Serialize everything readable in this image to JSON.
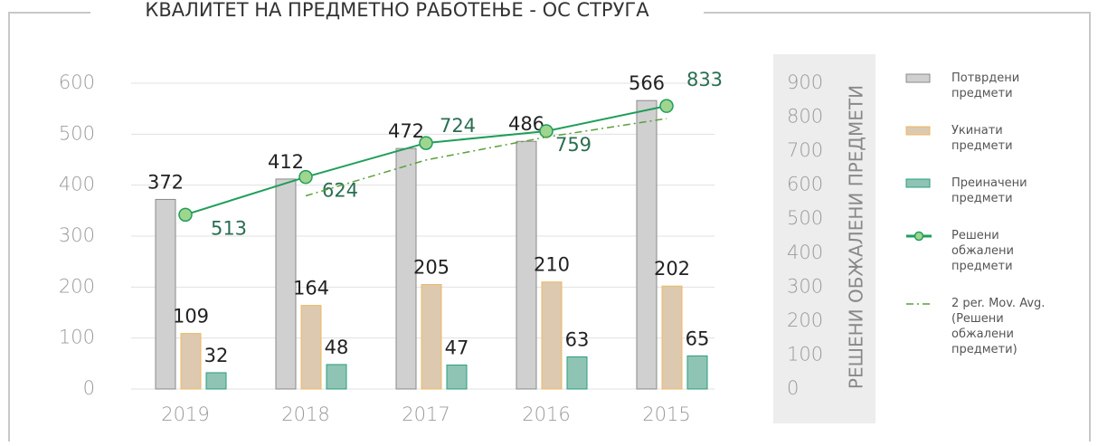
{
  "chart_data": {
    "type": "bar",
    "title": "КВАЛИТЕТ НА ПРЕДМЕТНО РАБОТЕЊЕ - ОС СТРУГА",
    "categories": [
      "2019",
      "2018",
      "2017",
      "2016",
      "2015"
    ],
    "series": [
      {
        "name": "Потврдени предмети",
        "type": "bar",
        "color": "#d0d0d0",
        "stroke": "#8a8a8a",
        "values": [
          372,
          412,
          472,
          486,
          566
        ]
      },
      {
        "name": "Укинати предмети",
        "type": "bar",
        "color": "#dcc9b0",
        "stroke": "#efb860",
        "values": [
          109,
          164,
          205,
          210,
          202
        ]
      },
      {
        "name": "Преиначени предмети",
        "type": "bar",
        "color": "#8fc4b4",
        "stroke": "#2a9d80",
        "values": [
          32,
          48,
          47,
          63,
          65
        ]
      },
      {
        "name": "Решени обжалени предмети",
        "type": "line",
        "axis": "y2",
        "color": "#1f9e5a",
        "marker_color": "#9fd58f",
        "values": [
          513,
          624,
          724,
          759,
          833
        ]
      },
      {
        "name": "2 per. Mov. Avg. (Решени обжалени предмети)",
        "type": "line",
        "axis": "y2",
        "color": "#5aa03c",
        "dash": "8 4 2 4",
        "values": [
          null,
          568.5,
          674,
          741.5,
          796
        ]
      }
    ],
    "ylim": [
      0,
      600
    ],
    "yticks": [
      0,
      100,
      200,
      300,
      400,
      500,
      600
    ],
    "y2lim": [
      0,
      900
    ],
    "y2ticks": [
      0,
      100,
      200,
      300,
      400,
      500,
      600,
      700,
      800,
      900
    ],
    "y2label": "РЕШЕНИ ОБЖАЛЕНИ ПРЕДМЕТИ",
    "legend": "right"
  }
}
